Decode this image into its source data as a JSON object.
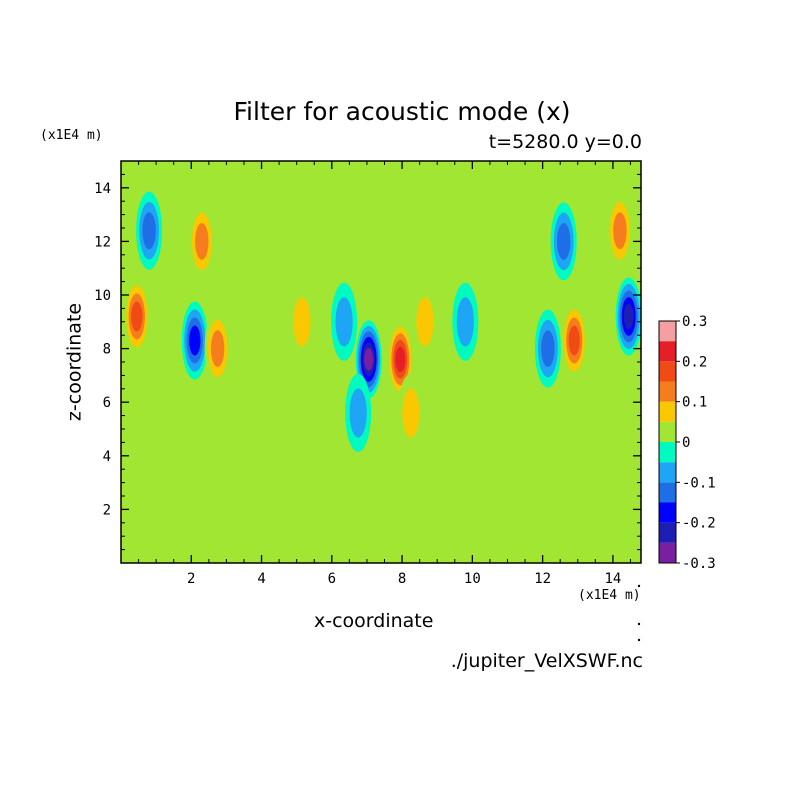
{
  "chart_data": {
    "type": "heatmap",
    "title": "Filter for acoustic mode (x)",
    "subtitle": "t=5280.0 y=0.0",
    "xlabel": "x-coordinate",
    "ylabel": "z-coordinate",
    "x_unit": "(x1E4 m)",
    "y_unit": "(x1E4 m)",
    "xlim": [
      0,
      14.8
    ],
    "ylim": [
      0,
      15
    ],
    "x_ticks": [
      2,
      4,
      6,
      8,
      10,
      12,
      14
    ],
    "y_ticks": [
      2,
      4,
      6,
      8,
      10,
      12,
      14
    ],
    "colorbar": {
      "levels": [
        -0.3,
        -0.25,
        -0.2,
        -0.15,
        -0.1,
        -0.05,
        0,
        0.05,
        0.1,
        0.15,
        0.2,
        0.25,
        0.3
      ],
      "colors": [
        "#7a1fa0",
        "#1e1eb4",
        "#0000ff",
        "#1e6ee6",
        "#1ea5f5",
        "#00fac0",
        "#a0e632",
        "#fac800",
        "#f57d1e",
        "#f04b14",
        "#e61e28",
        "#f5a0a0"
      ],
      "tick_labels": [
        "0.3",
        "0.2",
        "0.1",
        "0",
        "-0.1",
        "-0.2",
        "-0.3"
      ]
    },
    "background_value": 0,
    "features": [
      {
        "x": 7.05,
        "z": 7.6,
        "value": -0.28
      },
      {
        "x": 7.95,
        "z": 7.6,
        "value": 0.27
      },
      {
        "x": 0.45,
        "z": 9.2,
        "value": 0.22
      },
      {
        "x": 14.45,
        "z": 9.2,
        "value": -0.24
      },
      {
        "x": 2.1,
        "z": 8.3,
        "value": -0.22
      },
      {
        "x": 12.9,
        "z": 8.3,
        "value": 0.22
      },
      {
        "x": 2.75,
        "z": 8.0,
        "value": 0.14
      },
      {
        "x": 12.15,
        "z": 8.0,
        "value": -0.14
      },
      {
        "x": 0.8,
        "z": 12.4,
        "value": -0.14
      },
      {
        "x": 14.2,
        "z": 12.4,
        "value": 0.14
      },
      {
        "x": 2.3,
        "z": 12.0,
        "value": 0.16
      },
      {
        "x": 12.6,
        "z": 12.0,
        "value": -0.16
      },
      {
        "x": 6.35,
        "z": 9.0,
        "value": -0.11
      },
      {
        "x": 8.65,
        "z": 9.0,
        "value": 0.11
      },
      {
        "x": 5.15,
        "z": 9.0,
        "value": 0.11
      },
      {
        "x": 9.8,
        "z": 9.0,
        "value": -0.11
      },
      {
        "x": 6.75,
        "z": 5.6,
        "value": -0.09
      },
      {
        "x": 8.25,
        "z": 5.6,
        "value": 0.09
      }
    ]
  },
  "file_name": "./jupiter_VelXSWF.nc"
}
